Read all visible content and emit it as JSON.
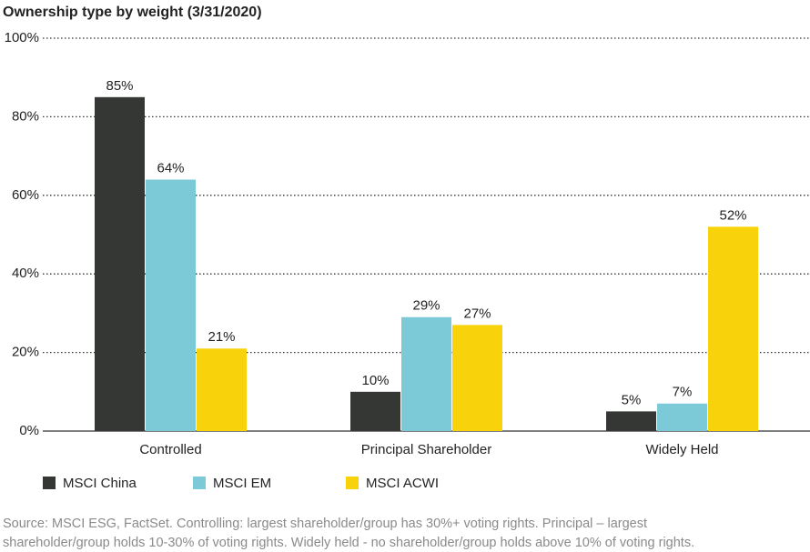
{
  "chart_data": {
    "type": "bar",
    "title": "Ownership type by weight (3/31/2020)",
    "categories": [
      "Controlled",
      "Principal Shareholder",
      "Widely Held"
    ],
    "series": [
      {
        "name": "MSCI China",
        "color": "#343733",
        "values": [
          85,
          10,
          5
        ],
        "value_labels": [
          "85%",
          "10%",
          "5%"
        ]
      },
      {
        "name": "MSCI EM",
        "color": "#7ccad8",
        "values": [
          64,
          29,
          7
        ],
        "value_labels": [
          "64%",
          "29%",
          "7%"
        ]
      },
      {
        "name": "MSCI ACWI",
        "color": "#f8d30c",
        "values": [
          21,
          27,
          52
        ],
        "value_labels": [
          "21%",
          "27%",
          "52%"
        ]
      }
    ],
    "ylim": [
      0,
      100
    ],
    "yticks": [
      {
        "value": 0,
        "label": "0%"
      },
      {
        "value": 20,
        "label": "20%"
      },
      {
        "value": 40,
        "label": "40%"
      },
      {
        "value": 60,
        "label": "60%"
      },
      {
        "value": 80,
        "label": "80%"
      },
      {
        "value": 100,
        "label": "100%"
      }
    ],
    "grid": true,
    "legend": "bottom-left",
    "source": [
      "Source: MSCI ESG, FactSet. Controlling: largest shareholder/group has 30%+ voting rights. Principal – largest",
      "shareholder/group holds 10-30% of voting rights. Widely held - no shareholder/group holds above 10% of voting rights."
    ]
  }
}
